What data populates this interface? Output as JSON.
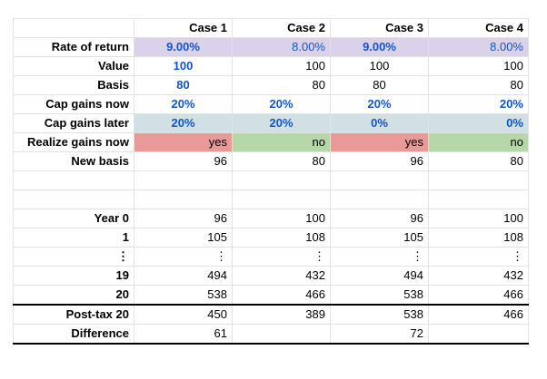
{
  "headers": [
    "",
    "Case 1",
    "Case 2",
    "Case 3",
    "Case 4"
  ],
  "inputs": [
    {
      "label": "Rate of return",
      "values": [
        "9.00%",
        "8.00%",
        "9.00%",
        "8.00%"
      ],
      "bg": "#d9d2e9"
    },
    {
      "label": "Value",
      "values": [
        "100",
        "100",
        "100",
        "100"
      ]
    },
    {
      "label": "Basis",
      "values": [
        "80",
        "80",
        "80",
        "80"
      ]
    },
    {
      "label": "Cap gains now",
      "values": [
        "20%",
        "20%",
        "20%",
        "20%"
      ]
    },
    {
      "label": "Cap gains later",
      "values": [
        "20%",
        "20%",
        "0%",
        "0%"
      ],
      "bg": "#d0e0e3"
    },
    {
      "label": "Realize gains now",
      "values": [
        "yes",
        "no",
        "yes",
        "no"
      ],
      "bg_yes": "#ea9999",
      "bg_no": "#b6d7a8"
    },
    {
      "label": "New basis",
      "values": [
        "96",
        "80",
        "96",
        "80"
      ]
    }
  ],
  "years": [
    {
      "label": "Year 0",
      "values": [
        "96",
        "100",
        "96",
        "100"
      ]
    },
    {
      "label": "1",
      "values": [
        "105",
        "108",
        "105",
        "108"
      ]
    },
    {
      "label": "⋮",
      "values": [
        "⋮",
        "⋮",
        "⋮",
        "⋮"
      ]
    },
    {
      "label": "19",
      "values": [
        "494",
        "432",
        "494",
        "432"
      ]
    },
    {
      "label": "20",
      "values": [
        "538",
        "466",
        "538",
        "466"
      ]
    }
  ],
  "results": [
    {
      "label": "Post-tax 20",
      "values": [
        "450",
        "389",
        "538",
        "466"
      ]
    },
    {
      "label": "Difference",
      "values": [
        "61",
        "",
        "72",
        ""
      ]
    }
  ],
  "colors": {
    "input_blue": "#1155cc",
    "header_border": "#000000"
  }
}
